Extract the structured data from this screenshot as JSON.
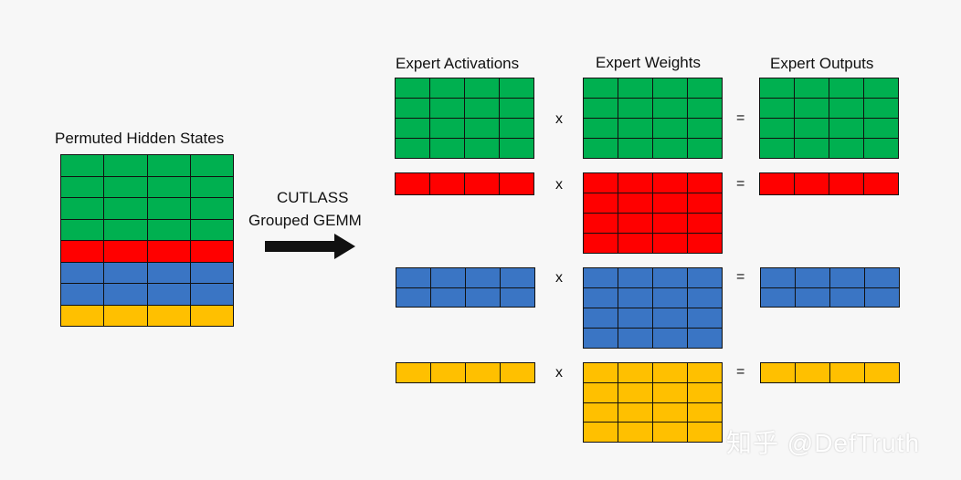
{
  "labels": {
    "permuted": "Permuted Hidden States",
    "cutlass_line1": "CUTLASS",
    "cutlass_line2": "Grouped GEMM",
    "activations": "Expert Activations",
    "weights": "Expert Weights",
    "outputs": "Expert Outputs",
    "times": "x",
    "equals": "="
  },
  "watermark": "知乎 @DefTruth",
  "colors": {
    "green": "#00b050",
    "red": "#ff0000",
    "blue": "#3a75c4",
    "yellow": "#ffc000",
    "border": "#111111"
  },
  "hidden_states_rows": [
    "green",
    "green",
    "green",
    "green",
    "red",
    "blue",
    "blue",
    "yellow"
  ],
  "experts": [
    {
      "color": "green",
      "activation_rows": 4,
      "weight_rows": 4,
      "output_rows": 4
    },
    {
      "color": "red",
      "activation_rows": 1,
      "weight_rows": 4,
      "output_rows": 1
    },
    {
      "color": "blue",
      "activation_rows": 2,
      "weight_rows": 4,
      "output_rows": 2
    },
    {
      "color": "yellow",
      "activation_rows": 1,
      "weight_rows": 4,
      "output_rows": 1
    }
  ],
  "columns_per_matrix": 4
}
